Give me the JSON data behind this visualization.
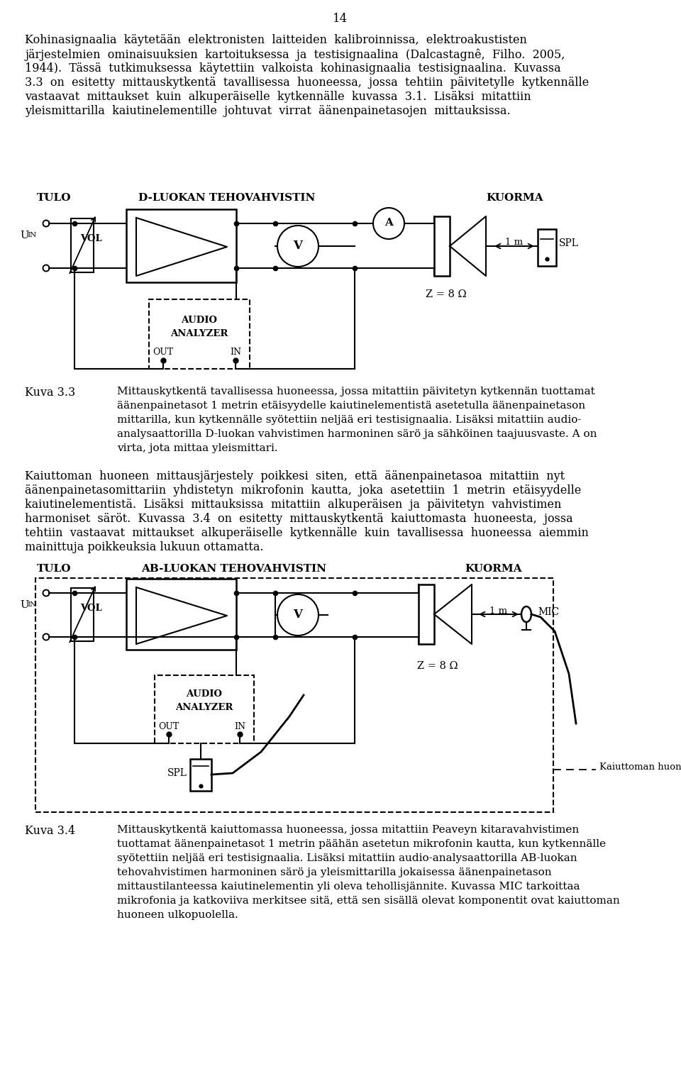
{
  "page_number": "14",
  "para1_lines": [
    "Kohinasignaalia  käytetään  elektronisten  laitteiden  kalibroinnissa,  elektroakustisten",
    "järjestelmien  ominaisuuksien  kartoituksessa  ja  testisignaalina  (Dalcastagnê,  Filho.  2005,",
    "1944).  Tässä  tutkimuksessa  käytettiin  valkoista  kohinasignaalia  testisignaalina.  Kuvassa",
    "3.3  on  esitetty  mittauskytkentä  tavallisessa  huoneessa,  jossa  tehtiin  päivitetylle  kytkennälle",
    "vastaavat  mittaukset  kuin  alkuperäiselle  kytkennälle  kuvassa  3.1.  Lisäksi  mitattiin",
    "yleismittarilla  kaiutinelementille  johtuvat  virrat  äänenpainetasojen  mittauksissa."
  ],
  "d1_left": "TULO",
  "d1_center": "D-LUOKAN TEHOVAHVISTIN",
  "d1_right": "KUORMA",
  "d1_VOL": "VOL",
  "d1_V": "V",
  "d1_A": "A",
  "d1_1m": "1 m",
  "d1_SPL": "SPL",
  "d1_Z": "Z = 8 Ω",
  "d1_AUDIO1": "AUDIO",
  "d1_AUDIO2": "ANALYZER",
  "d1_OUT": "OUT",
  "d1_IN": "IN",
  "cap33_label": "Kuva 3.3",
  "cap33_lines": [
    "Mittauskytkentä tavallisessa huoneessa, jossa mitattiin päivitetyn kytkennän tuottamat",
    "äänenpainetasot 1 metrin etäisyydelle kaiutinelementistä asetetulla äänenpainetason",
    "mittarilla, kun kytkennälle syötettiin neljää eri testisignaalia. Lisäksi mitattiin audio-",
    "analysaattorilla D-luokan vahvistimen harmoninen särö ja sähköinen taajuusvaste. A on",
    "virta, jota mittaa yleismittari."
  ],
  "para2_lines": [
    "Kaiuttoman  huoneen  mittausjärjestely  poikkesi  siten,  että  äänenpainetasoa  mitattiin  nyt",
    "äänenpainetasomittariin  yhdistetyn  mikrofonin  kautta,  joka  asetettiin  1  metrin  etäisyydelle",
    "kaiutinelementistä.  Lisäksi  mittauksissa  mitattiin  alkuperäisen  ja  päivitetyn  vahvistimen",
    "harmoniset  säröt.  Kuvassa  3.4  on  esitetty  mittauskytkentä  kaiuttomasta  huoneesta,  jossa",
    "tehtiin  vastaavat  mittaukset  alkuperäiselle  kytkennälle  kuin  tavallisessa  huoneessa  aiemmin",
    "mainittuja poikkeuksia lukuun ottamatta."
  ],
  "d2_left": "TULO",
  "d2_center": "AB-LUOKAN TEHOVAHVISTIN",
  "d2_right": "KUORMA",
  "d2_VOL": "VOL",
  "d2_V": "V",
  "d2_1m": "1 m",
  "d2_MIC": "MIC",
  "d2_Z": "Z = 8 Ω",
  "d2_AUDIO1": "AUDIO",
  "d2_AUDIO2": "ANALYZER",
  "d2_OUT": "OUT",
  "d2_IN": "IN",
  "d2_SPL": "SPL",
  "d2_dashed_label": "Kaiuttoman huoneen ulkopuolella",
  "cap34_label": "Kuva 3.4",
  "cap34_lines": [
    "Mittauskytkentä kaiuttomassa huoneessa, jossa mitattiin Peaveyn kitaravahvistimen",
    "tuottamat äänenpainetasot 1 metrin päähän asetetun mikrofonin kautta, kun kytkennälle",
    "syötettiin neljää eri testisignaalia. Lisäksi mitattiin audio-analysaattorilla AB-luokan",
    "tehovahvistimen harmoninen särö ja yleismittarilla jokaisessa äänenpainetason",
    "mittaustilanteessa kaiutinelementin yli oleva tehollisjännite. Kuvassa MIC tarkoittaa",
    "mikrofonia ja katkoviiva merkitsee sitä, että sen sisällä olevat komponentit ovat kaiuttoman",
    "huoneen ulkopuolella."
  ]
}
